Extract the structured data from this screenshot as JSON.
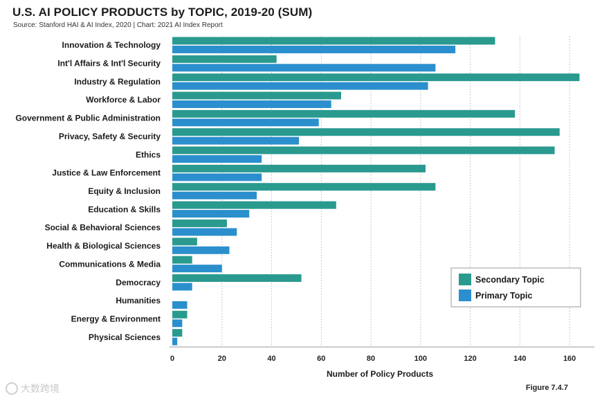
{
  "figure": {
    "title": "U.S. AI POLICY PRODUCTS by TOPIC, 2019-20 (SUM)",
    "source": "Source: Stanford HAI & AI Index, 2020 | Chart: 2021 AI Index Report",
    "figure_label": "Figure 7.4.7",
    "watermark": "大数跨境"
  },
  "chart_data": {
    "type": "bar",
    "orientation": "horizontal",
    "title": "U.S. AI POLICY PRODUCTS by TOPIC, 2019-20 (SUM)",
    "xlabel": "Number of Policy Products",
    "ylabel": "",
    "xlim": [
      0,
      170
    ],
    "xticks": [
      0,
      20,
      40,
      60,
      80,
      100,
      120,
      140,
      160
    ],
    "grid": "vertical dashed",
    "legend_position": "bottom-right",
    "categories": [
      "Innovation & Technology",
      "Int'l Affairs & Int'l Security",
      "Industry & Regulation",
      "Workforce & Labor",
      "Government & Public Administration",
      "Privacy, Safety & Security",
      "Ethics",
      "Justice & Law Enforcement",
      "Equity & Inclusion",
      "Education & Skills",
      "Social & Behavioral Sciences",
      "Health & Biological Sciences",
      "Communications & Media",
      "Democracy",
      "Humanities",
      "Energy & Environment",
      "Physical Sciences"
    ],
    "series": [
      {
        "name": "Secondary Topic",
        "color": "#2a9a8f",
        "values": [
          130,
          42,
          164,
          68,
          138,
          156,
          154,
          102,
          106,
          66,
          22,
          10,
          8,
          52,
          0,
          6,
          4
        ]
      },
      {
        "name": "Primary Topic",
        "color": "#2b8fcd",
        "values": [
          114,
          106,
          103,
          64,
          59,
          51,
          36,
          36,
          34,
          31,
          26,
          23,
          20,
          8,
          6,
          4,
          2
        ]
      }
    ]
  }
}
